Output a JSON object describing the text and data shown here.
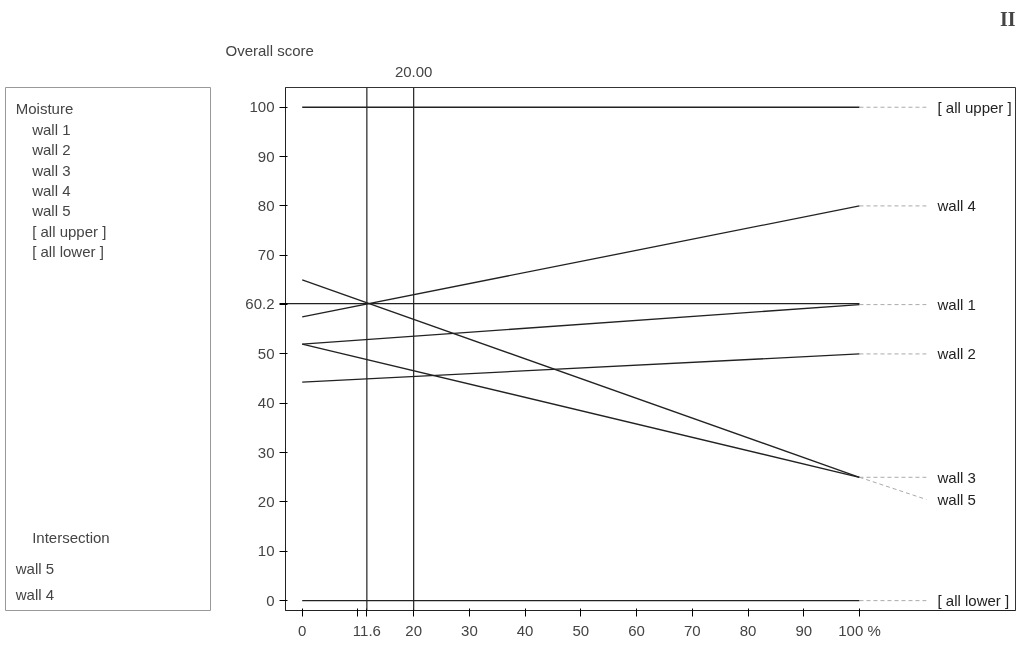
{
  "chart_data": {
    "type": "line",
    "ylabel": "Overall score",
    "x": [
      0,
      100
    ],
    "series": [
      {
        "name": "[ all upper ]",
        "color": "#222222",
        "values": [
          100,
          100
        ]
      },
      {
        "name": "wall 4",
        "color": "#222222",
        "values": [
          57.5,
          80
        ]
      },
      {
        "name": "wall 1",
        "color": "#222222",
        "values": [
          52,
          60
        ]
      },
      {
        "name": "wall 2",
        "color": "#222222",
        "values": [
          44.3,
          50
        ]
      },
      {
        "name": "wall 3",
        "color": "#222222",
        "values": [
          52,
          25
        ]
      },
      {
        "name": "wall 5",
        "color": "#222222",
        "values": [
          65,
          25
        ]
      },
      {
        "name": "[ all lower ]",
        "color": "#222222",
        "values": [
          0,
          0
        ]
      }
    ],
    "xlim": [
      -3,
      128
    ],
    "ylim": [
      -2,
      104
    ],
    "xticks": [
      0,
      {
        "value": 10,
        "label": null
      },
      20,
      30,
      40,
      50,
      60,
      70,
      80,
      90,
      {
        "value": 100,
        "label": "100 %"
      }
    ],
    "yticks": [
      0,
      10,
      20,
      30,
      40,
      50,
      {
        "value": 60,
        "label": null
      },
      70,
      80,
      90,
      100
    ],
    "ref_lines": [
      {
        "axis": "x",
        "value": 20,
        "label": "20.00"
      },
      {
        "axis": "x",
        "value": 11.6,
        "label": "11.6"
      },
      {
        "axis": "y",
        "value": 60.2,
        "label": "60.2"
      }
    ],
    "grid": false,
    "legend": false,
    "marker": "none",
    "line_style": "solid",
    "annotations": [
      "II",
      "Moisture",
      "wall 1",
      "wall 2",
      "wall 3",
      "wall 4",
      "wall 5",
      "[ all upper ]",
      "[ all lower ]",
      "Intersection",
      "wall 5",
      "wall 4"
    ]
  }
}
